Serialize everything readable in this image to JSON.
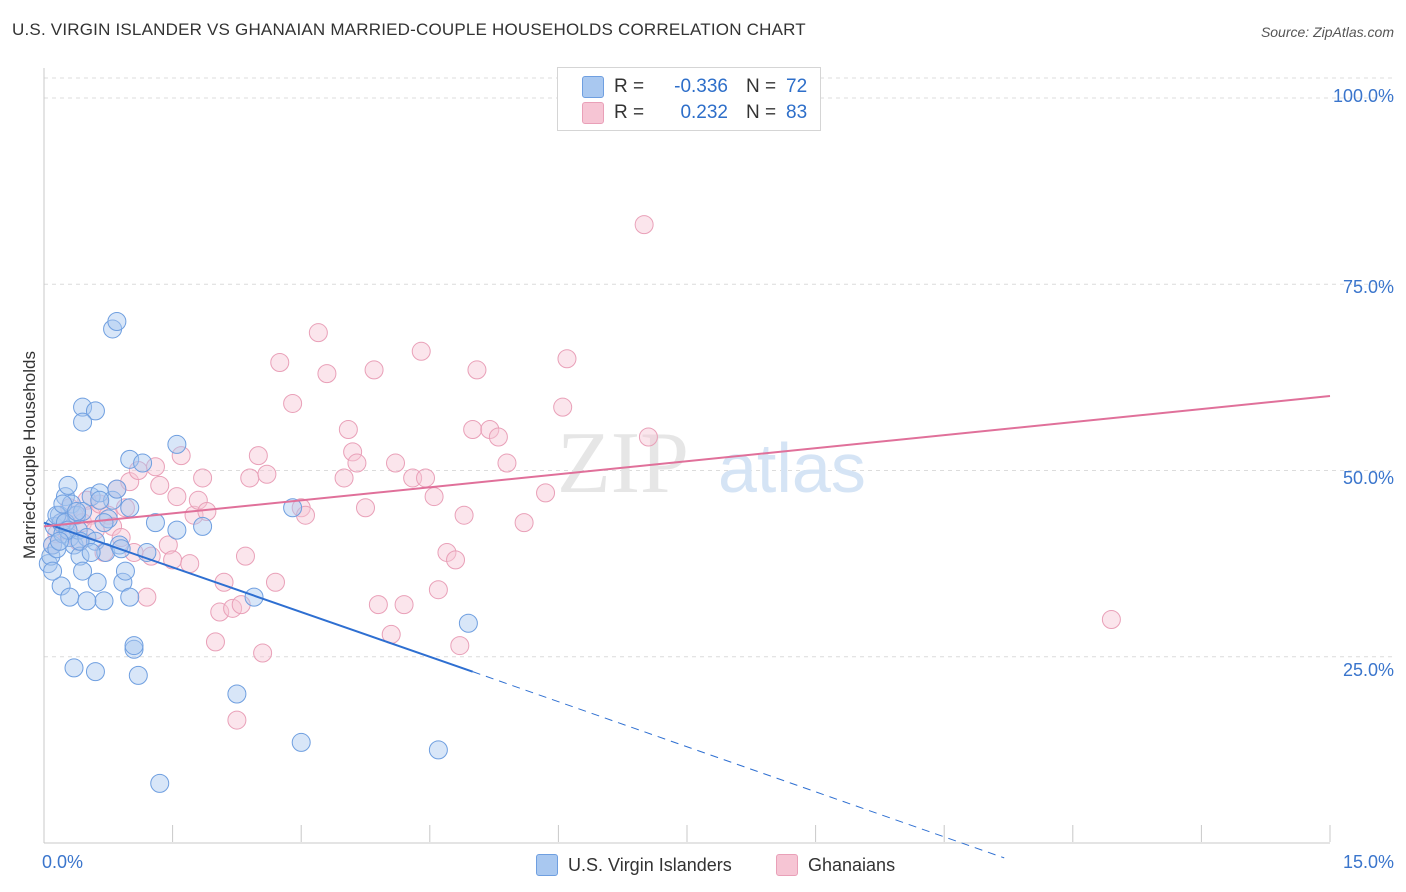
{
  "header": {
    "title": "U.S. VIRGIN ISLANDER VS GHANAIAN MARRIED-COUPLE HOUSEHOLDS CORRELATION CHART",
    "source": "Source: ZipAtlas.com"
  },
  "legend": {
    "rows": [
      {
        "r_label": "R =",
        "r_value": "-0.336",
        "n_label": "N =",
        "n_value": "72",
        "color": "#a9c8f0"
      },
      {
        "r_label": "R =",
        "r_value": "0.232",
        "n_label": "N =",
        "n_value": "83",
        "color": "#f6b8cb"
      }
    ]
  },
  "bottom_legend": [
    {
      "label": "U.S. Virgin Islanders",
      "color": "#a9c8f0"
    },
    {
      "label": "Ghanaians",
      "color": "#f6b8cb"
    }
  ],
  "colors": {
    "blue_line": "#2e6fd1",
    "pink_line": "#e0709a",
    "blue_fill": "#a9c8f0",
    "blue_stroke": "#6f9fe0",
    "pink_fill": "#f6c5d4",
    "pink_stroke": "#e9a0b8",
    "grid": "#dcdcdc",
    "tick_text": "#3a75cc"
  },
  "watermark": {
    "zip": "ZIP",
    "atlas": "atlas"
  },
  "chart_data": {
    "type": "scatter",
    "title": "U.S. VIRGIN ISLANDER VS GHANAIAN MARRIED-COUPLE HOUSEHOLDS CORRELATION CHART",
    "xlabel": "",
    "ylabel": "Married-couple Households",
    "xlim": [
      0,
      15
    ],
    "ylim": [
      0,
      100
    ],
    "x_tick_labels": [
      "0.0%",
      "15.0%"
    ],
    "y_ticks": [
      25,
      50,
      75,
      100
    ],
    "y_tick_labels": [
      "25.0%",
      "50.0%",
      "75.0%",
      "100.0%"
    ],
    "grid": true,
    "series": [
      {
        "name": "U.S. Virgin Islanders",
        "color": "#a9c8f0",
        "points": [
          [
            0.05,
            37.5
          ],
          [
            0.08,
            38.5
          ],
          [
            0.1,
            40
          ],
          [
            0.12,
            42.5
          ],
          [
            0.15,
            39.5
          ],
          [
            0.18,
            44
          ],
          [
            0.2,
            43
          ],
          [
            0.22,
            41.5
          ],
          [
            0.25,
            46.5
          ],
          [
            0.28,
            48
          ],
          [
            0.3,
            41
          ],
          [
            0.32,
            45.5
          ],
          [
            0.35,
            40
          ],
          [
            0.38,
            44
          ],
          [
            0.4,
            42
          ],
          [
            0.42,
            38.5
          ],
          [
            0.45,
            44.5
          ],
          [
            0.5,
            41
          ],
          [
            0.55,
            46.5
          ],
          [
            0.6,
            40.5
          ],
          [
            0.62,
            35
          ],
          [
            0.65,
            47
          ],
          [
            0.7,
            32.5
          ],
          [
            0.72,
            39
          ],
          [
            0.75,
            43.5
          ],
          [
            0.8,
            46
          ],
          [
            0.85,
            47.5
          ],
          [
            0.88,
            40
          ],
          [
            0.92,
            35
          ],
          [
            0.95,
            36.5
          ],
          [
            1.0,
            33
          ],
          [
            1.05,
            26
          ],
          [
            0.15,
            44
          ],
          [
            0.2,
            34.5
          ],
          [
            0.3,
            33
          ],
          [
            0.35,
            23.5
          ],
          [
            0.45,
            36.5
          ],
          [
            0.5,
            32.5
          ],
          [
            0.6,
            23
          ],
          [
            0.65,
            46
          ],
          [
            0.25,
            43
          ],
          [
            0.28,
            42
          ],
          [
            0.45,
            58.5
          ],
          [
            0.6,
            58
          ],
          [
            0.45,
            56.5
          ],
          [
            0.8,
            69
          ],
          [
            0.85,
            70
          ],
          [
            1.0,
            45
          ],
          [
            1.0,
            51.5
          ],
          [
            1.05,
            26.5
          ],
          [
            1.1,
            22.5
          ],
          [
            1.15,
            51
          ],
          [
            1.3,
            43
          ],
          [
            1.35,
            8
          ],
          [
            1.55,
            42
          ],
          [
            1.55,
            53.5
          ],
          [
            1.85,
            42.5
          ],
          [
            2.25,
            20
          ],
          [
            2.45,
            33
          ],
          [
            2.9,
            45
          ],
          [
            3.0,
            13.5
          ],
          [
            4.6,
            12.5
          ],
          [
            4.95,
            29.5
          ],
          [
            0.1,
            36.5
          ],
          [
            0.18,
            40.5
          ],
          [
            0.22,
            45.5
          ],
          [
            0.38,
            44.5
          ],
          [
            0.42,
            40.5
          ],
          [
            0.55,
            39
          ],
          [
            0.7,
            43
          ],
          [
            0.9,
            39.5
          ],
          [
            1.2,
            39
          ]
        ]
      },
      {
        "name": "Ghanaians",
        "color": "#f6b8cb",
        "points": [
          [
            0.1,
            40
          ],
          [
            0.15,
            41.5
          ],
          [
            0.2,
            43
          ],
          [
            0.25,
            42
          ],
          [
            0.3,
            45
          ],
          [
            0.35,
            44
          ],
          [
            0.4,
            40.5
          ],
          [
            0.45,
            43
          ],
          [
            0.5,
            46
          ],
          [
            0.55,
            44
          ],
          [
            0.6,
            42
          ],
          [
            0.65,
            45.5
          ],
          [
            0.7,
            39
          ],
          [
            0.75,
            44
          ],
          [
            0.8,
            42.5
          ],
          [
            0.85,
            47.5
          ],
          [
            0.9,
            41
          ],
          [
            0.95,
            45
          ],
          [
            1.0,
            48.5
          ],
          [
            1.05,
            39
          ],
          [
            1.1,
            50
          ],
          [
            1.2,
            33
          ],
          [
            1.25,
            38.5
          ],
          [
            1.3,
            50.5
          ],
          [
            1.35,
            48
          ],
          [
            1.45,
            40
          ],
          [
            1.5,
            38
          ],
          [
            1.55,
            46.5
          ],
          [
            1.6,
            52
          ],
          [
            1.7,
            37.5
          ],
          [
            1.75,
            44
          ],
          [
            1.8,
            46
          ],
          [
            1.85,
            49
          ],
          [
            1.9,
            44.5
          ],
          [
            2.0,
            27
          ],
          [
            2.05,
            31
          ],
          [
            2.1,
            35
          ],
          [
            2.2,
            31.5
          ],
          [
            2.25,
            16.5
          ],
          [
            2.3,
            32
          ],
          [
            2.35,
            38.5
          ],
          [
            2.4,
            49
          ],
          [
            2.5,
            52
          ],
          [
            2.55,
            25.5
          ],
          [
            2.6,
            49.5
          ],
          [
            2.7,
            35
          ],
          [
            2.75,
            64.5
          ],
          [
            2.9,
            59
          ],
          [
            3.0,
            45
          ],
          [
            3.05,
            44
          ],
          [
            3.2,
            68.5
          ],
          [
            3.3,
            63
          ],
          [
            3.5,
            49
          ],
          [
            3.55,
            55.5
          ],
          [
            3.6,
            52.5
          ],
          [
            3.65,
            51
          ],
          [
            3.75,
            45
          ],
          [
            3.85,
            63.5
          ],
          [
            3.9,
            32
          ],
          [
            4.05,
            28
          ],
          [
            4.1,
            51
          ],
          [
            4.2,
            32
          ],
          [
            4.3,
            49
          ],
          [
            4.4,
            66
          ],
          [
            4.45,
            49
          ],
          [
            4.55,
            46.5
          ],
          [
            4.6,
            34
          ],
          [
            4.7,
            39
          ],
          [
            4.8,
            38
          ],
          [
            4.9,
            44
          ],
          [
            5.0,
            55.5
          ],
          [
            5.05,
            63.5
          ],
          [
            5.2,
            55.5
          ],
          [
            5.3,
            54.5
          ],
          [
            5.4,
            51
          ],
          [
            5.6,
            43
          ],
          [
            5.85,
            47
          ],
          [
            6.05,
            58.5
          ],
          [
            6.1,
            65
          ],
          [
            7.0,
            83
          ],
          [
            7.05,
            54.5
          ],
          [
            12.45,
            30
          ],
          [
            4.85,
            26.5
          ]
        ]
      }
    ],
    "trend_lines": [
      {
        "series": "U.S. Virgin Islanders",
        "x_solid": [
          0,
          5
        ],
        "y_solid": [
          43,
          23
        ],
        "x_dashed": [
          5,
          11.2
        ],
        "y_dashed": [
          23,
          -2
        ]
      },
      {
        "series": "Ghanaians",
        "x": [
          0,
          15
        ],
        "y": [
          42.5,
          60
        ]
      }
    ]
  }
}
